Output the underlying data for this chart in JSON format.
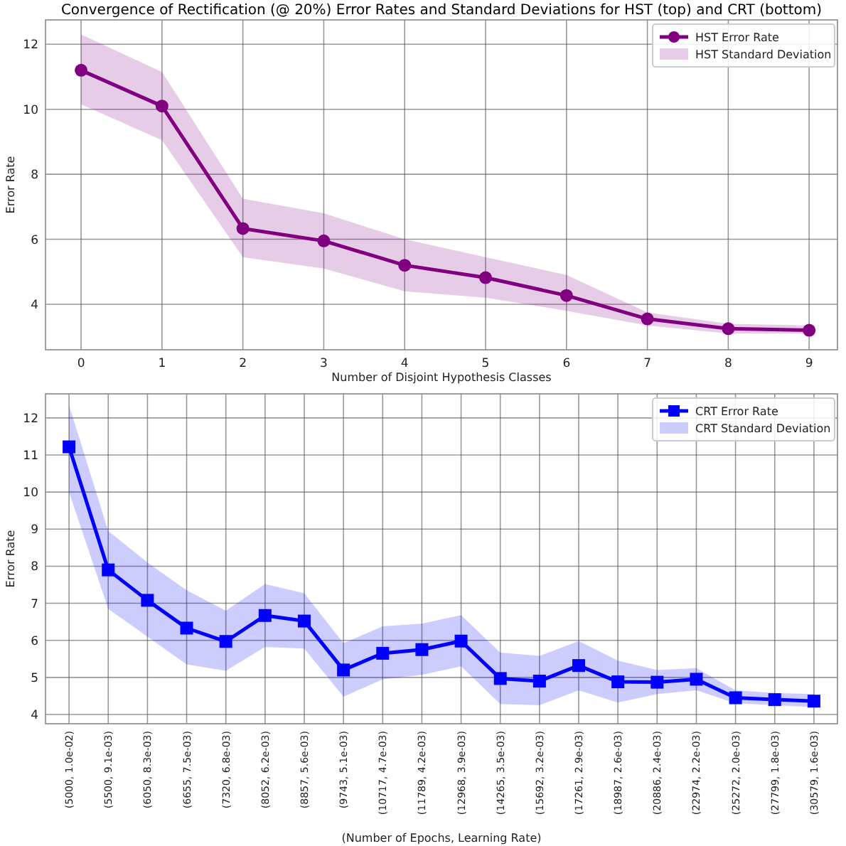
{
  "chart_data": [
    {
      "type": "line",
      "title": "Convergence of Rectification (@ 20%) Error Rates and Standard Deviations for HST (top) and CRT (bottom)",
      "xlabel": "Number of Disjoint Hypothesis Classes",
      "ylabel": "Error Rate",
      "x": [
        0,
        1,
        2,
        3,
        4,
        5,
        6,
        7,
        8,
        9
      ],
      "series": [
        {
          "name": "HST Error Rate",
          "color": "#800080",
          "values": [
            11.2,
            10.1,
            6.33,
            5.95,
            5.2,
            4.82,
            4.27,
            3.55,
            3.25,
            3.2
          ],
          "lower": [
            10.15,
            9.05,
            5.45,
            5.1,
            4.4,
            4.2,
            3.8,
            3.35,
            3.1,
            3.1
          ],
          "upper": [
            12.3,
            11.15,
            7.25,
            6.8,
            6.0,
            5.45,
            4.9,
            3.75,
            3.4,
            3.35
          ]
        }
      ],
      "annotations": [
        "HST Standard Deviation"
      ],
      "xlim": [
        -0.44,
        9.35
      ],
      "xticks": [
        0,
        1,
        2,
        3,
        4,
        5,
        6,
        7,
        8,
        9
      ],
      "ylim": [
        2.6,
        12.75
      ],
      "yticks": [
        4,
        6,
        8,
        10,
        12
      ],
      "grid": true,
      "legend": "top right",
      "marker": "circle",
      "line_style": "solid"
    },
    {
      "type": "line",
      "xlabel": "(Number of Epochs, Learning Rate)",
      "ylabel": "Error Rate",
      "categories": [
        "(5000, 1.0e-02)",
        "(5500, 9.1e-03)",
        "(6050, 8.3e-03)",
        "(6655, 7.5e-03)",
        "(7320, 6.8e-03)",
        "(8052, 6.2e-03)",
        "(8857, 5.6e-03)",
        "(9743, 5.1e-03)",
        "(10717, 4.7e-03)",
        "(11789, 4.2e-03)",
        "(12968, 3.9e-03)",
        "(14265, 3.5e-03)",
        "(15692, 3.2e-03)",
        "(17261, 2.9e-03)",
        "(18987, 2.6e-03)",
        "(20886, 2.4e-03)",
        "(22974, 2.2e-03)",
        "(25272, 2.0e-03)",
        "(27799, 1.8e-03)",
        "(30579, 1.6e-03)"
      ],
      "series": [
        {
          "name": "CRT Error Rate",
          "color": "#0000ff",
          "values": [
            11.22,
            7.9,
            7.08,
            6.33,
            5.97,
            6.67,
            6.52,
            5.2,
            5.65,
            5.75,
            5.98,
            4.97,
            4.9,
            5.32,
            4.88,
            4.87,
            4.95,
            4.45,
            4.4,
            4.36
          ],
          "lower": [
            10.0,
            6.85,
            6.1,
            5.35,
            5.18,
            5.82,
            5.78,
            4.48,
            4.95,
            5.07,
            5.3,
            4.28,
            4.25,
            4.65,
            4.32,
            4.55,
            4.65,
            4.3,
            4.25,
            4.2
          ],
          "upper": [
            12.35,
            8.95,
            8.1,
            7.35,
            6.8,
            7.52,
            7.27,
            5.92,
            6.38,
            6.45,
            6.68,
            5.67,
            5.58,
            5.98,
            5.45,
            5.2,
            5.25,
            4.65,
            4.58,
            4.55
          ]
        }
      ],
      "annotations": [
        "CRT Standard Deviation"
      ],
      "ylim": [
        3.75,
        12.65
      ],
      "yticks": [
        4,
        5,
        6,
        7,
        8,
        9,
        10,
        11,
        12
      ],
      "grid": true,
      "legend": "top right",
      "marker": "square",
      "line_style": "solid"
    }
  ]
}
